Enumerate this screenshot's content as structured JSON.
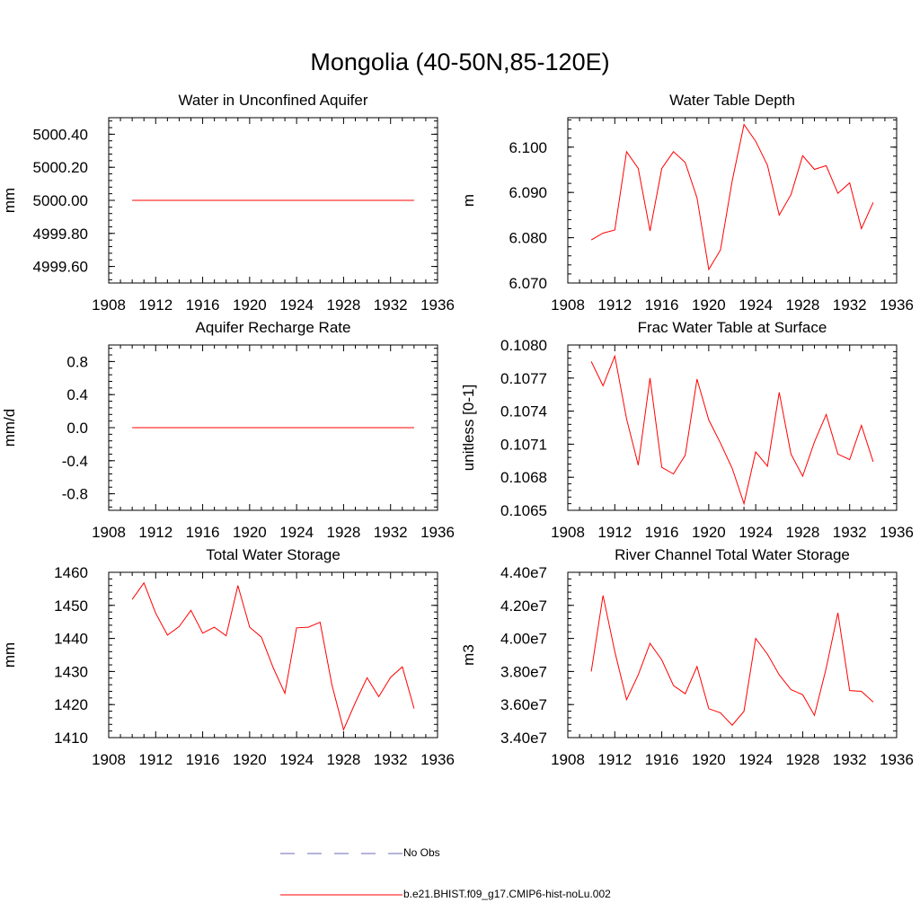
{
  "page_title": "Mongolia (40-50N,85-120E)",
  "colors": {
    "series": "#ff0000",
    "obs": "#6a6ab4",
    "axis": "#000000"
  },
  "legend": [
    {
      "label": "No Obs",
      "style": "dashed",
      "color": "#6a6ab4"
    },
    {
      "label": "b.e21.BHIST.f09_g17.CMIP6-hist-noLu.002",
      "style": "solid",
      "color": "#ff0000"
    }
  ],
  "chart_data": [
    {
      "type": "line",
      "title": "Water in Unconfined Aquifer",
      "ylabel": "mm",
      "xlim": [
        1908,
        1936
      ],
      "ylim": [
        4999.5,
        5000.5
      ],
      "xticks": [
        "1908",
        "1912",
        "1916",
        "1920",
        "1924",
        "1928",
        "1932",
        "1936"
      ],
      "yticks": [
        {
          "value": 4999.6,
          "label": "4999.60"
        },
        {
          "value": 4999.8,
          "label": "4999.80"
        },
        {
          "value": 5000.0,
          "label": "5000.00"
        },
        {
          "value": 5000.2,
          "label": "5000.20"
        },
        {
          "value": 5000.4,
          "label": "5000.40"
        }
      ],
      "x": [
        1910,
        1911,
        1912,
        1913,
        1914,
        1915,
        1916,
        1917,
        1918,
        1919,
        1920,
        1921,
        1922,
        1923,
        1924,
        1925,
        1926,
        1927,
        1928,
        1929,
        1930,
        1931,
        1932,
        1933,
        1934
      ],
      "series": [
        {
          "name": "b.e21.BHIST.f09_g17.CMIP6-hist-noLu.002",
          "values": [
            5000,
            5000,
            5000,
            5000,
            5000,
            5000,
            5000,
            5000,
            5000,
            5000,
            5000,
            5000,
            5000,
            5000,
            5000,
            5000,
            5000,
            5000,
            5000,
            5000,
            5000,
            5000,
            5000,
            5000,
            5000
          ]
        }
      ]
    },
    {
      "type": "line",
      "title": "Water Table Depth",
      "ylabel": "m",
      "xlim": [
        1908,
        1936
      ],
      "ylim": [
        6.07,
        6.1065
      ],
      "xticks": [
        "1908",
        "1912",
        "1916",
        "1920",
        "1924",
        "1928",
        "1932",
        "1936"
      ],
      "yticks": [
        {
          "value": 6.07,
          "label": "6.070"
        },
        {
          "value": 6.08,
          "label": "6.080"
        },
        {
          "value": 6.09,
          "label": "6.090"
        },
        {
          "value": 6.1,
          "label": "6.100"
        }
      ],
      "x": [
        1910,
        1911,
        1912,
        1913,
        1914,
        1915,
        1916,
        1917,
        1918,
        1919,
        1920,
        1921,
        1922,
        1923,
        1924,
        1925,
        1926,
        1927,
        1928,
        1929,
        1930,
        1931,
        1932,
        1933,
        1934
      ],
      "series": [
        {
          "name": "b.e21.BHIST.f09_g17.CMIP6-hist-noLu.002",
          "values": [
            6.0795,
            6.081,
            6.0817,
            6.099,
            6.0953,
            6.0815,
            6.0953,
            6.099,
            6.0966,
            6.0888,
            6.073,
            6.0773,
            6.0926,
            6.105,
            6.1013,
            6.096,
            6.085,
            6.0895,
            6.0981,
            6.0951,
            6.0959,
            6.0898,
            6.0921,
            6.082,
            6.0878
          ]
        }
      ]
    },
    {
      "type": "line",
      "title": "Aquifer Recharge Rate",
      "ylabel": "mm/d",
      "xlim": [
        1908,
        1936
      ],
      "ylim": [
        -1.0,
        1.0
      ],
      "xticks": [
        "1908",
        "1912",
        "1916",
        "1920",
        "1924",
        "1928",
        "1932",
        "1936"
      ],
      "yticks": [
        {
          "value": -0.8,
          "label": "-0.8"
        },
        {
          "value": -0.4,
          "label": "-0.4"
        },
        {
          "value": 0.0,
          "label": "0.0"
        },
        {
          "value": 0.4,
          "label": "0.4"
        },
        {
          "value": 0.8,
          "label": "0.8"
        }
      ],
      "x": [
        1910,
        1911,
        1912,
        1913,
        1914,
        1915,
        1916,
        1917,
        1918,
        1919,
        1920,
        1921,
        1922,
        1923,
        1924,
        1925,
        1926,
        1927,
        1928,
        1929,
        1930,
        1931,
        1932,
        1933,
        1934
      ],
      "series": [
        {
          "name": "b.e21.BHIST.f09_g17.CMIP6-hist-noLu.002",
          "values": [
            0,
            0,
            0,
            0,
            0,
            0,
            0,
            0,
            0,
            0,
            0,
            0,
            0,
            0,
            0,
            0,
            0,
            0,
            0,
            0,
            0,
            0,
            0,
            0,
            0
          ]
        }
      ]
    },
    {
      "type": "line",
      "title": "Frac Water Table at Surface",
      "ylabel": "unitless [0-1]",
      "xlim": [
        1908,
        1936
      ],
      "ylim": [
        0.1065,
        0.108
      ],
      "xticks": [
        "1908",
        "1912",
        "1916",
        "1920",
        "1924",
        "1928",
        "1932",
        "1936"
      ],
      "yticks": [
        {
          "value": 0.1065,
          "label": "0.1065"
        },
        {
          "value": 0.1068,
          "label": "0.1068"
        },
        {
          "value": 0.1071,
          "label": "0.1071"
        },
        {
          "value": 0.1074,
          "label": "0.1074"
        },
        {
          "value": 0.1077,
          "label": "0.1077"
        },
        {
          "value": 0.108,
          "label": "0.1080"
        }
      ],
      "x": [
        1910,
        1911,
        1912,
        1913,
        1914,
        1915,
        1916,
        1917,
        1918,
        1919,
        1920,
        1921,
        1922,
        1923,
        1924,
        1925,
        1926,
        1927,
        1928,
        1929,
        1930,
        1931,
        1932,
        1933,
        1934
      ],
      "series": [
        {
          "name": "b.e21.BHIST.f09_g17.CMIP6-hist-noLu.002",
          "values": [
            0.10785,
            0.10763,
            0.1079,
            0.10733,
            0.10691,
            0.1077,
            0.10689,
            0.10683,
            0.107,
            0.10769,
            0.10732,
            0.10711,
            0.10688,
            0.10656,
            0.10703,
            0.1069,
            0.10757,
            0.10701,
            0.10681,
            0.10712,
            0.10737,
            0.10701,
            0.10696,
            0.10727,
            0.10694
          ]
        }
      ]
    },
    {
      "type": "line",
      "title": "Total Water Storage",
      "ylabel": "mm",
      "xlim": [
        1908,
        1936
      ],
      "ylim": [
        1410,
        1460
      ],
      "xticks": [
        "1908",
        "1912",
        "1916",
        "1920",
        "1924",
        "1928",
        "1932",
        "1936"
      ],
      "yticks": [
        {
          "value": 1410,
          "label": "1410"
        },
        {
          "value": 1420,
          "label": "1420"
        },
        {
          "value": 1430,
          "label": "1430"
        },
        {
          "value": 1440,
          "label": "1440"
        },
        {
          "value": 1450,
          "label": "1450"
        },
        {
          "value": 1460,
          "label": "1460"
        }
      ],
      "x": [
        1910,
        1911,
        1912,
        1913,
        1914,
        1915,
        1916,
        1917,
        1918,
        1919,
        1920,
        1921,
        1922,
        1923,
        1924,
        1925,
        1926,
        1927,
        1928,
        1929,
        1930,
        1931,
        1932,
        1933,
        1934
      ],
      "series": [
        {
          "name": "b.e21.BHIST.f09_g17.CMIP6-hist-noLu.002",
          "values": [
            1451.8,
            1456.8,
            1447.6,
            1441.0,
            1443.6,
            1448.5,
            1441.6,
            1443.4,
            1440.8,
            1456.0,
            1443.4,
            1440.4,
            1431.2,
            1423.4,
            1443.2,
            1443.4,
            1444.9,
            1426.0,
            1412.4,
            1420.6,
            1428.1,
            1422.4,
            1428.2,
            1431.4,
            1418.8
          ]
        }
      ]
    },
    {
      "type": "line",
      "title": "River Channel Total Water Storage",
      "ylabel": "m3",
      "xlim": [
        1908,
        1936
      ],
      "ylim": [
        34000000,
        44000000
      ],
      "xticks": [
        "1908",
        "1912",
        "1916",
        "1920",
        "1924",
        "1928",
        "1932",
        "1936"
      ],
      "yticks": [
        {
          "value": 34000000,
          "label": "3.40e7"
        },
        {
          "value": 36000000,
          "label": "3.60e7"
        },
        {
          "value": 38000000,
          "label": "3.80e7"
        },
        {
          "value": 40000000,
          "label": "4.00e7"
        },
        {
          "value": 42000000,
          "label": "4.20e7"
        },
        {
          "value": 44000000,
          "label": "4.40e7"
        }
      ],
      "x": [
        1910,
        1911,
        1912,
        1913,
        1914,
        1915,
        1916,
        1917,
        1918,
        1919,
        1920,
        1921,
        1922,
        1923,
        1924,
        1925,
        1926,
        1927,
        1928,
        1929,
        1930,
        1931,
        1932,
        1933,
        1934
      ],
      "series": [
        {
          "name": "b.e21.BHIST.f09_g17.CMIP6-hist-noLu.002",
          "values": [
            38000000,
            42600000,
            39200000,
            36300000,
            37800000,
            39700000,
            38700000,
            37150000,
            36650000,
            38300000,
            35750000,
            35500000,
            34750000,
            35600000,
            40000000,
            39050000,
            37800000,
            36900000,
            36600000,
            35350000,
            38200000,
            41550000,
            36850000,
            36800000,
            36150000
          ]
        }
      ]
    }
  ]
}
